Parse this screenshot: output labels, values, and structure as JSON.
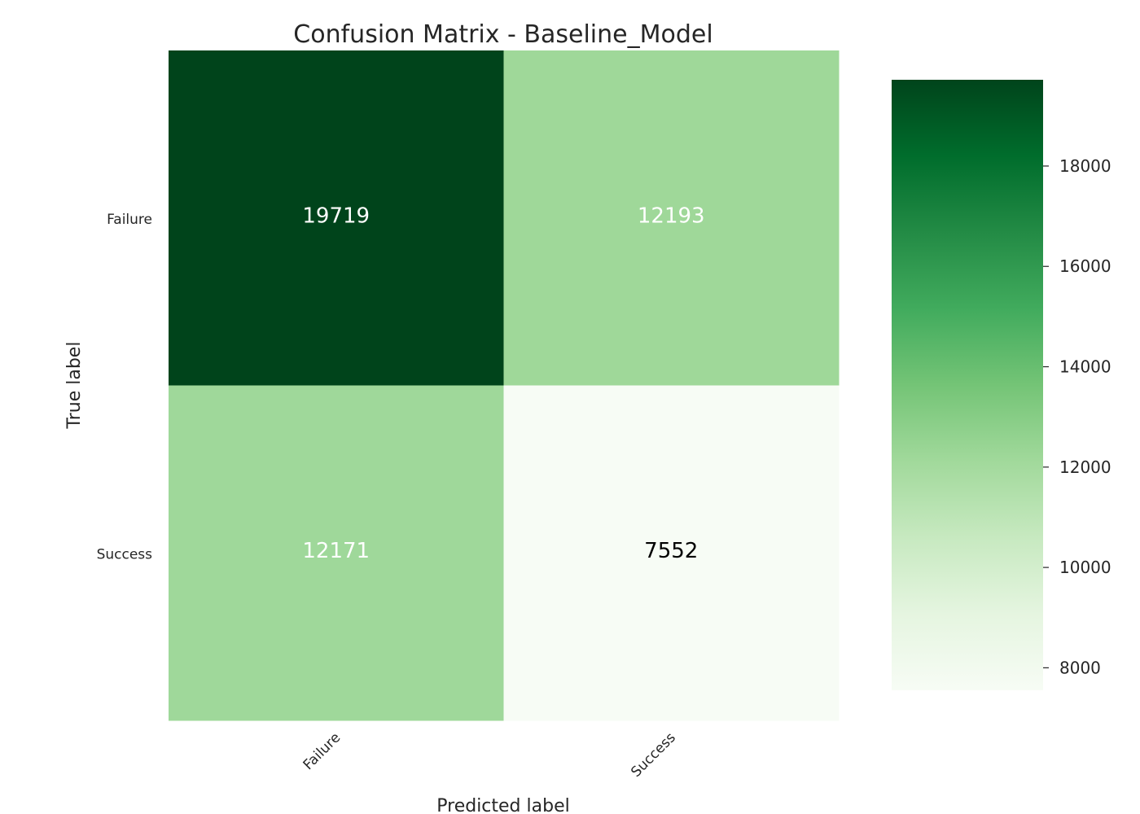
{
  "chart_data": {
    "type": "heatmap",
    "title": "Confusion Matrix - Baseline_Model",
    "xlabel": "Predicted label",
    "ylabel": "True label",
    "x_categories": [
      "Failure",
      "Success"
    ],
    "y_categories": [
      "Failure",
      "Success"
    ],
    "values": [
      [
        19719,
        12193
      ],
      [
        12171,
        7552
      ]
    ],
    "colormap": "Greens",
    "colorbar": {
      "min": 7552,
      "max": 19719,
      "ticks": [
        8000,
        10000,
        12000,
        14000,
        16000,
        18000
      ]
    },
    "grid": false,
    "text_colors": {
      "dark_cell": "#ffffff",
      "light_cell": "#000000"
    }
  }
}
